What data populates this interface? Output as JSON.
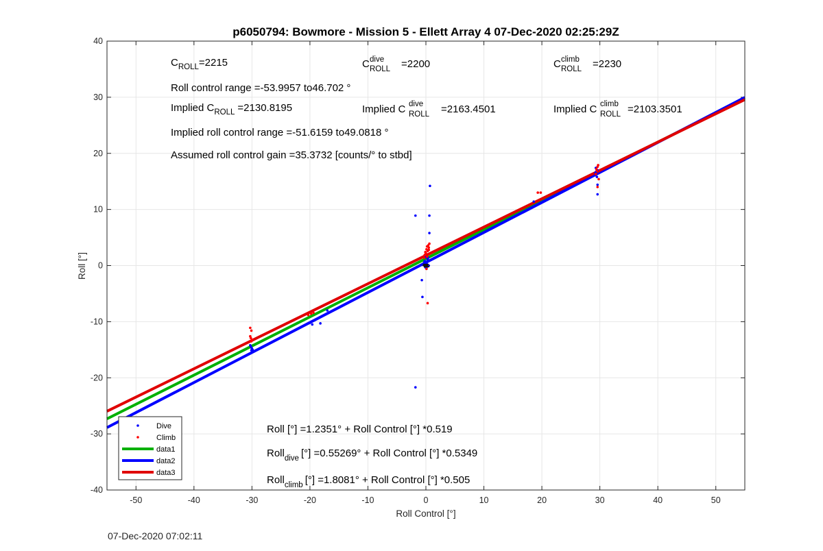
{
  "chart_data": {
    "type": "scatter",
    "title": "p6050794: Bowmore - Mission 5 - Ellett Array 4 07-Dec-2020 02:25:29Z",
    "xlabel": "Roll Control [°]",
    "ylabel": "Roll [°]",
    "xlim": [
      -55,
      55
    ],
    "ylim": [
      -40,
      40
    ],
    "xticks": [
      -50,
      -40,
      -30,
      -20,
      -10,
      0,
      10,
      20,
      30,
      40,
      50
    ],
    "yticks": [
      -40,
      -30,
      -20,
      -10,
      0,
      10,
      20,
      30,
      40
    ],
    "grid": true,
    "legend_position": "bottom-left",
    "series": [
      {
        "name": "Dive",
        "kind": "points",
        "color": "#0000ff",
        "points": [
          [
            -30.3,
            -14.2
          ],
          [
            -30.1,
            -14.6
          ],
          [
            -29.9,
            -15.0
          ],
          [
            -30.0,
            -14.8
          ],
          [
            -30.2,
            -14.4
          ],
          [
            -29.8,
            -15.2
          ],
          [
            -30.0,
            -14.9
          ],
          [
            -30.1,
            -15.1
          ],
          [
            -20.0,
            -10.2
          ],
          [
            -19.6,
            -10.5
          ],
          [
            -18.2,
            -10.3
          ],
          [
            -17.0,
            -8.0
          ],
          [
            -1.8,
            8.9
          ],
          [
            0.7,
            14.2
          ],
          [
            0.6,
            8.9
          ],
          [
            0.6,
            5.8
          ],
          [
            -1.8,
            -21.7
          ],
          [
            -0.6,
            -5.6
          ],
          [
            -0.7,
            -2.6
          ],
          [
            -0.3,
            0.1
          ],
          [
            0.1,
            0.4
          ],
          [
            0.2,
            -0.2
          ],
          [
            -0.2,
            0.8
          ],
          [
            0.3,
            1.1
          ],
          [
            0.0,
            0.5
          ],
          [
            -0.1,
            -0.3
          ],
          [
            0.2,
            0.2
          ],
          [
            -0.3,
            0.6
          ],
          [
            0.4,
            1.4
          ],
          [
            0.1,
            -0.5
          ],
          [
            -0.4,
            0.3
          ],
          [
            0.3,
            0.9
          ],
          [
            0.0,
            1.5
          ],
          [
            0.5,
            0.0
          ],
          [
            18.6,
            11.4
          ],
          [
            29.2,
            16.1
          ],
          [
            29.4,
            16.8
          ],
          [
            29.3,
            17.4
          ],
          [
            29.5,
            15.8
          ],
          [
            29.6,
            17.0
          ],
          [
            29.2,
            16.5
          ],
          [
            29.6,
            12.7
          ],
          [
            29.6,
            14.4
          ]
        ]
      },
      {
        "name": "Climb",
        "kind": "points",
        "color": "#ff0000",
        "points": [
          [
            -30.3,
            -11.1
          ],
          [
            -30.1,
            -11.6
          ],
          [
            -30.2,
            -12.9
          ],
          [
            -30.0,
            -13.2
          ],
          [
            -30.3,
            -12.6
          ],
          [
            -30.1,
            -13.5
          ],
          [
            -20.3,
            -8.8
          ],
          [
            -19.4,
            -8.4
          ],
          [
            -19.8,
            -8.6
          ],
          [
            0.3,
            -6.7
          ],
          [
            0.1,
            -0.6
          ],
          [
            -0.3,
            1.4
          ],
          [
            0.0,
            2.2
          ],
          [
            0.3,
            2.6
          ],
          [
            0.5,
            3.2
          ],
          [
            -0.2,
            1.9
          ],
          [
            0.4,
            3.6
          ],
          [
            0.1,
            2.9
          ],
          [
            0.6,
            3.9
          ],
          [
            -0.1,
            2.4
          ],
          [
            0.2,
            1.6
          ],
          [
            0.5,
            2.8
          ],
          [
            0.2,
            3.4
          ],
          [
            19.3,
            13.0
          ],
          [
            19.8,
            13.0
          ],
          [
            29.3,
            16.3
          ],
          [
            29.6,
            17.6
          ],
          [
            29.5,
            16.9
          ],
          [
            29.7,
            17.9
          ],
          [
            29.8,
            15.4
          ],
          [
            29.6,
            14.0
          ],
          [
            29.4,
            17.2
          ]
        ]
      },
      {
        "name": "data1",
        "kind": "line",
        "color": "#00b000",
        "intercept": 1.2351,
        "slope": 0.519
      },
      {
        "name": "data2",
        "kind": "line",
        "color": "#0000ff",
        "intercept": 0.55269,
        "slope": 0.5349
      },
      {
        "name": "data3",
        "kind": "line",
        "color": "#e00000",
        "intercept": 1.8081,
        "slope": 0.505
      }
    ]
  },
  "annotations": {
    "c_roll": "=2215",
    "c_roll_dive": "=2200",
    "c_roll_climb": "=2230",
    "roll_control_range": "Roll control range =-53.9957 to46.702 °",
    "implied_c_roll": "=2130.8195",
    "implied_c_roll_dive": "=2163.4501",
    "implied_c_roll_climb": "=2103.3501",
    "implied_range": "Implied roll control range =-51.6159 to49.0818 °",
    "gain": "Assumed roll control gain =35.3732 [counts/° to stbd]",
    "fit_all": "Roll [°] =1.2351° + Roll Control [°] *0.519",
    "fit_dive": "[°] =0.55269° + Roll Control [°] *0.5349",
    "fit_climb": "[°] =1.8081° + Roll Control [°] *0.505"
  },
  "labels": {
    "c": "C",
    "roll_sub": "ROLL",
    "dive_sup": "dive",
    "climb_sup": "climb",
    "implied": "Implied ",
    "roll": "Roll",
    "dive_sub": "dive",
    "climb_sub": "climb"
  },
  "footer_timestamp": "07-Dec-2020 07:02:11"
}
